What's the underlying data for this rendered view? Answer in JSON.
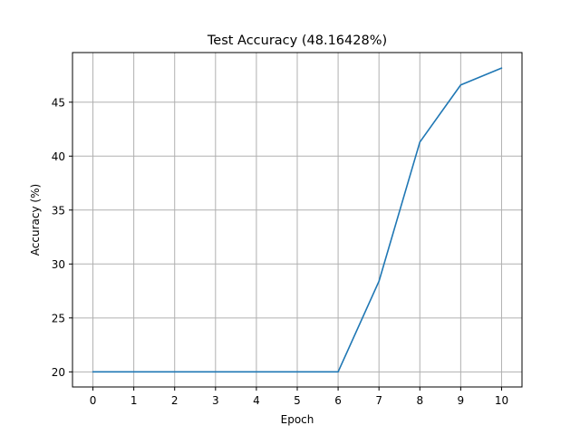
{
  "chart_data": {
    "type": "line",
    "title": "Test Accuracy (48.16428%)",
    "xlabel": "Epoch",
    "ylabel": "Accuracy (%)",
    "x": [
      0,
      1,
      2,
      3,
      4,
      5,
      6,
      7,
      8,
      9,
      10
    ],
    "series": [
      {
        "values": [
          20.0,
          20.0,
          20.0,
          20.0,
          20.0,
          20.0,
          20.0,
          28.4,
          41.3,
          46.6,
          48.16
        ]
      }
    ],
    "xticks": [
      0,
      1,
      2,
      3,
      4,
      5,
      6,
      7,
      8,
      9,
      10
    ],
    "yticks": [
      20,
      25,
      30,
      35,
      40,
      45
    ],
    "xlim": [
      -0.5,
      10.5
    ],
    "ylim": [
      18.6,
      49.6
    ],
    "grid": true,
    "line_color": "#1f77b4"
  }
}
